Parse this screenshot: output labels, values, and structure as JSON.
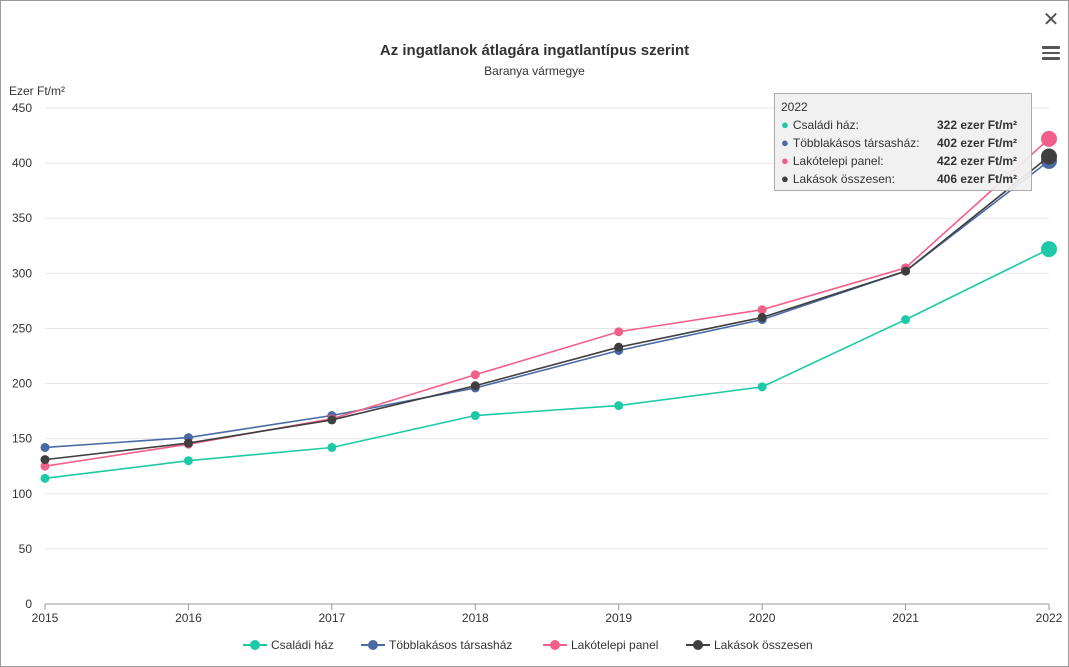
{
  "toolbar": {
    "close_glyph": "✕",
    "menu_icon": "hamburger-icon"
  },
  "chart_data": {
    "type": "line",
    "title": "Az ingatlanok átlagára ingatlantípus szerint",
    "subtitle": "Baranya vármegye",
    "ylabel": "Ezer Ft/m²",
    "xlabel": "",
    "x": [
      "2015",
      "2016",
      "2017",
      "2018",
      "2019",
      "2020",
      "2021",
      "2022"
    ],
    "yticks": [
      "0",
      "50",
      "100",
      "150",
      "200",
      "250",
      "300",
      "350",
      "400",
      "450"
    ],
    "ylim": [
      0,
      450
    ],
    "grid": true,
    "legend_position": "bottom-center",
    "series": [
      {
        "name": "Családi ház",
        "color": "#1ec9a8",
        "values": [
          114,
          130,
          142,
          171,
          180,
          197,
          258,
          322
        ]
      },
      {
        "name": "Többlakásos társasház",
        "color": "#4a6aa5",
        "values": [
          142,
          151,
          171,
          196,
          230,
          258,
          302,
          402
        ]
      },
      {
        "name": "Lakótelepi panel",
        "color": "#f2608a",
        "values": [
          125,
          145,
          168,
          208,
          247,
          267,
          305,
          422
        ]
      },
      {
        "name": "Lakások összesen",
        "color": "#3f3f3f",
        "values": [
          131,
          146,
          167,
          198,
          233,
          260,
          302,
          406
        ]
      }
    ]
  },
  "tooltip": {
    "year": "2022",
    "rows": [
      {
        "label": "Családi ház:",
        "value": "322 ezer Ft/m²",
        "color": "#1ec9a8"
      },
      {
        "label": "Többlakásos társasház:",
        "value": "402 ezer Ft/m²",
        "color": "#4a6aa5"
      },
      {
        "label": "Lakótelepi panel:",
        "value": "422 ezer Ft/m²",
        "color": "#f2608a"
      },
      {
        "label": "Lakások összesen:",
        "value": "406 ezer Ft/m²",
        "color": "#3f3f3f"
      }
    ]
  }
}
